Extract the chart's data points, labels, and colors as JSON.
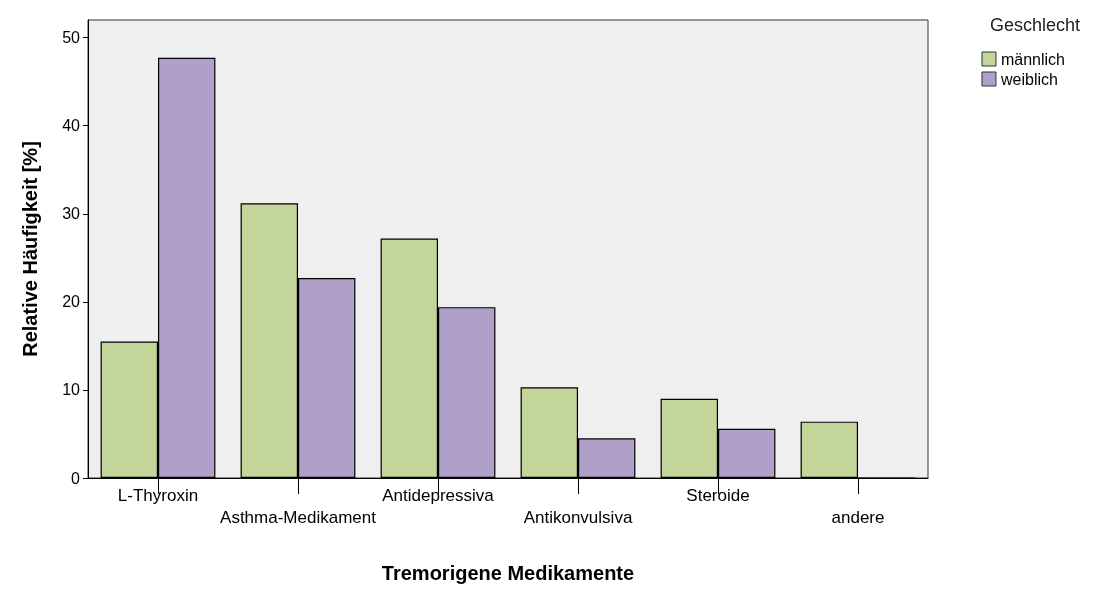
{
  "chart_data": {
    "type": "bar",
    "xlabel": "Tremorigene Medikamente",
    "ylabel": "Relative Häufigkeit [%]",
    "legend_title": "Geschlecht",
    "categories": [
      "L-Thyroxin",
      "Asthma-Medikament",
      "Antidepressiva",
      "Antikonvulsiva",
      "Steroide",
      "andere"
    ],
    "series": [
      {
        "name": "männlich",
        "color": "#c4d59a",
        "values": [
          15.5,
          31.2,
          27.2,
          10.3,
          9.0,
          6.4
        ]
      },
      {
        "name": "weiblich",
        "color": "#b09fc8",
        "values": [
          47.7,
          22.7,
          19.4,
          4.5,
          5.6,
          0
        ]
      }
    ],
    "ylim": [
      0,
      52
    ],
    "yticks": [
      0,
      10,
      20,
      30,
      40,
      50
    ],
    "grid": false,
    "legend": "top right"
  }
}
